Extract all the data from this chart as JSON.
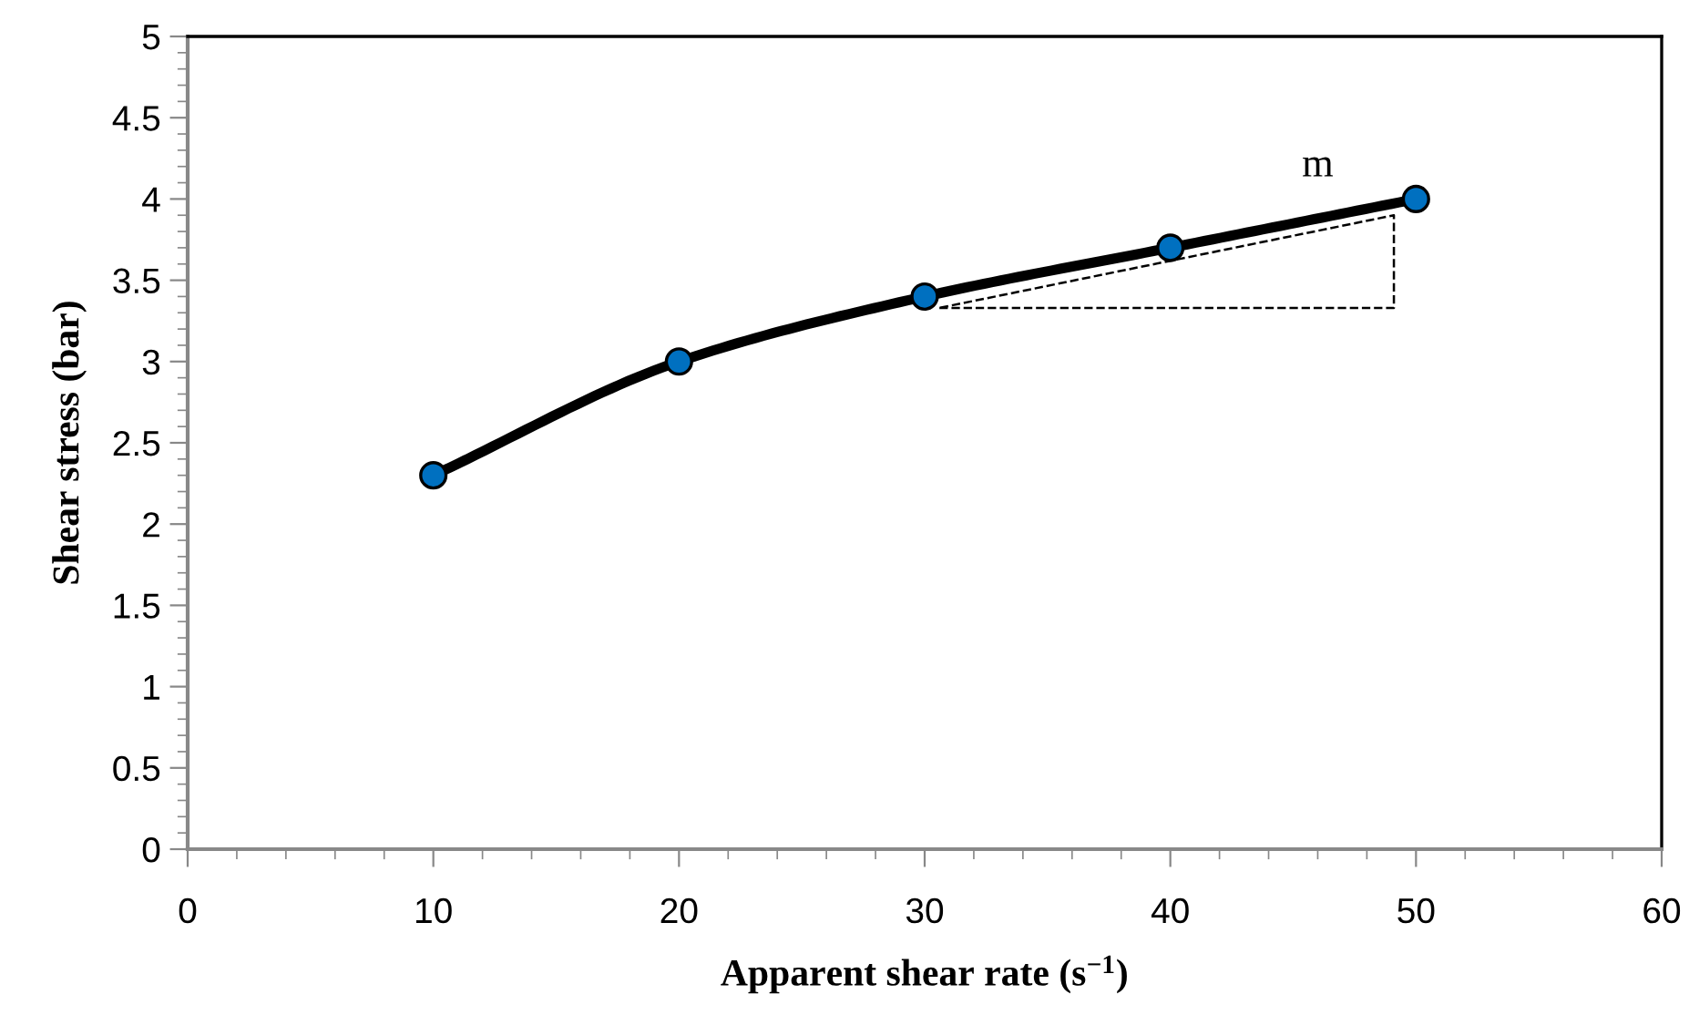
{
  "chart_data": {
    "type": "line",
    "xlabel": "Apparent shear rate (s$^{−1}$)",
    "ylabel": "Shear stress (bar)",
    "x": [
      10,
      20,
      30,
      40,
      50
    ],
    "series": [
      {
        "color": "#0070c0",
        "values": [
          2.3,
          3.0,
          3.4,
          3.7,
          4.0
        ],
        "marker": "circle",
        "line_style": "solid"
      }
    ],
    "annotations": [
      "m"
    ],
    "xlim": [
      0,
      60
    ],
    "xticks": [
      0,
      10,
      20,
      30,
      40,
      50,
      60
    ],
    "ylim": [
      0,
      5
    ],
    "yticks": [
      0,
      0.5,
      1,
      1.5,
      2,
      2.5,
      3,
      3.5,
      4,
      4.5,
      5
    ],
    "grid": false,
    "legend": false
  }
}
